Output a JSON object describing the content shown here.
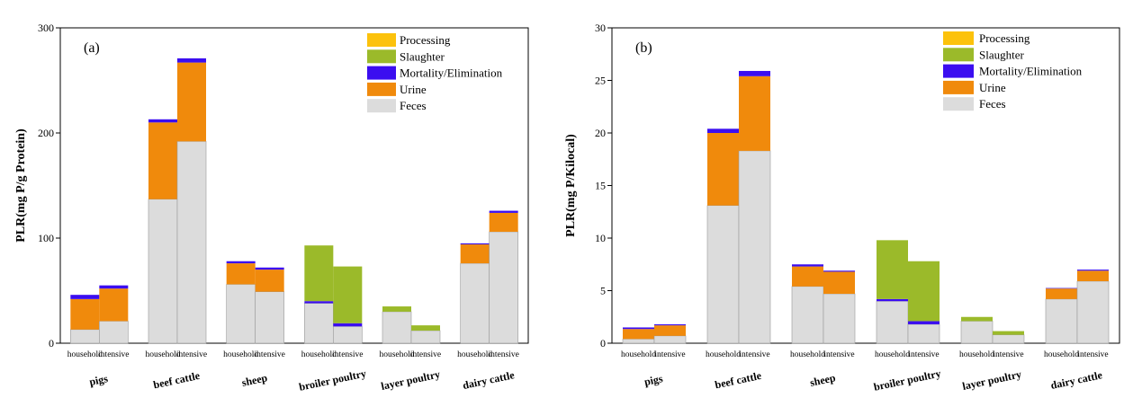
{
  "chart_data": [
    {
      "type": "bar",
      "stacked": true,
      "panel_label": "(a)",
      "ylabel": "PLR(mg P/g Protein)",
      "ylim": [
        0,
        300
      ],
      "yticks": [
        0,
        100,
        200,
        300
      ],
      "groups": [
        "pigs",
        "beef cattle",
        "sheep",
        "broiler poultry",
        "layer poultry",
        "dairy cattle"
      ],
      "subcategories": [
        "household",
        "intensive"
      ],
      "legend": [
        "Processing",
        "Slaughter",
        "Mortality/Elimination",
        "Urine",
        "Feces"
      ],
      "legend_position": "top-right",
      "series": [
        {
          "name": "Feces",
          "color": "#dcdcdc",
          "values": [
            13,
            21,
            137,
            192,
            56,
            49,
            38,
            16,
            30,
            12,
            76,
            106
          ]
        },
        {
          "name": "Urine",
          "color": "#f08a0c",
          "values": [
            29,
            31,
            73,
            75,
            20,
            21,
            0,
            0,
            0,
            0,
            18,
            18
          ]
        },
        {
          "name": "Mortality/Elimination",
          "color": "#3b0ef0",
          "values": [
            4,
            3,
            3,
            4,
            2,
            2,
            2,
            3,
            0,
            0,
            1,
            2
          ]
        },
        {
          "name": "Slaughter",
          "color": "#9bba2a",
          "values": [
            0,
            0,
            0,
            0,
            0,
            0,
            53,
            54,
            5,
            5,
            0,
            0
          ]
        },
        {
          "name": "Processing",
          "color": "#fcc20c",
          "values": [
            0,
            0,
            0,
            0,
            0,
            0,
            0,
            0,
            0,
            0,
            0,
            0
          ]
        }
      ]
    },
    {
      "type": "bar",
      "stacked": true,
      "panel_label": "(b)",
      "ylabel": "PLR(mg P/Kilocal)",
      "ylim": [
        0,
        30
      ],
      "yticks": [
        0,
        5,
        10,
        15,
        20,
        25,
        30
      ],
      "groups": [
        "pigs",
        "beef cattle",
        "sheep",
        "broiler poultry",
        "layer poultry",
        "dairy cattle"
      ],
      "subcategories": [
        "household",
        "intensive"
      ],
      "legend": [
        "Processing",
        "Slaughter",
        "Mortality/Elimination",
        "Urine",
        "Feces"
      ],
      "legend_position": "top-right",
      "series": [
        {
          "name": "Feces",
          "color": "#dcdcdc",
          "values": [
            0.4,
            0.7,
            13.1,
            18.3,
            5.4,
            4.7,
            4.0,
            1.8,
            2.1,
            0.8,
            4.2,
            5.9
          ]
        },
        {
          "name": "Urine",
          "color": "#f08a0c",
          "values": [
            0.95,
            1.0,
            6.9,
            7.1,
            1.9,
            2.1,
            0,
            0,
            0,
            0,
            1.0,
            1.0
          ]
        },
        {
          "name": "Mortality/Elimination",
          "color": "#3b0ef0",
          "values": [
            0.15,
            0.1,
            0.4,
            0.5,
            0.2,
            0.1,
            0.2,
            0.3,
            0,
            0,
            0.05,
            0.1
          ]
        },
        {
          "name": "Slaughter",
          "color": "#9bba2a",
          "values": [
            0,
            0,
            0,
            0,
            0,
            0,
            5.6,
            5.7,
            0.4,
            0.35,
            0,
            0
          ]
        },
        {
          "name": "Processing",
          "color": "#fcc20c",
          "values": [
            0,
            0,
            0,
            0,
            0,
            0,
            0,
            0,
            0,
            0,
            0,
            0
          ]
        }
      ]
    }
  ]
}
